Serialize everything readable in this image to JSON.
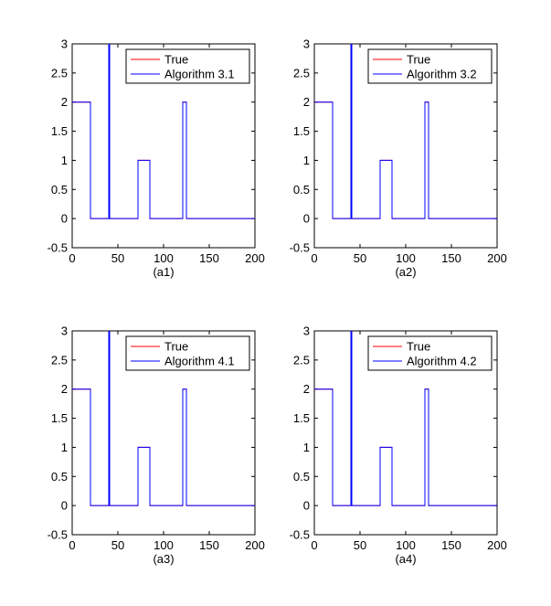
{
  "chart_data": [
    {
      "type": "line",
      "xlabel": "(a1)",
      "xlim": [
        0,
        200
      ],
      "ylim": [
        -0.5,
        3
      ],
      "xticks": [
        "0",
        "50",
        "100",
        "150",
        "200"
      ],
      "yticks": [
        "-0.5",
        "0",
        "0.5",
        "1",
        "1.5",
        "2",
        "2.5",
        "3"
      ],
      "legend_position": "top-right",
      "series": [
        {
          "name": "True",
          "color": "#ff0000",
          "x": [
            0,
            20,
            20,
            40,
            40,
            41,
            41,
            72,
            72,
            85,
            85,
            121,
            121,
            125,
            125,
            200
          ],
          "y": [
            2,
            2,
            0,
            0,
            3,
            3,
            0,
            0,
            1,
            1,
            0,
            0,
            2,
            2,
            0,
            0
          ]
        },
        {
          "name": "Algorithm 3.1",
          "color": "#0000ff",
          "x": [
            0,
            20,
            20,
            40,
            40,
            41,
            41,
            72,
            72,
            85,
            85,
            121,
            121,
            125,
            125,
            200
          ],
          "y": [
            2,
            2,
            0,
            0,
            3,
            3,
            0,
            0,
            1,
            1,
            0,
            0,
            2,
            2,
            0,
            0
          ]
        }
      ]
    },
    {
      "type": "line",
      "xlabel": "(a2)",
      "xlim": [
        0,
        200
      ],
      "ylim": [
        -0.5,
        3
      ],
      "xticks": [
        "0",
        "50",
        "100",
        "150",
        "200"
      ],
      "yticks": [
        "-0.5",
        "0",
        "0.5",
        "1",
        "1.5",
        "2",
        "2.5",
        "3"
      ],
      "legend_position": "top-right",
      "series": [
        {
          "name": "True",
          "color": "#ff0000",
          "x": [
            0,
            20,
            20,
            40,
            40,
            41,
            41,
            72,
            72,
            85,
            85,
            121,
            121,
            125,
            125,
            200
          ],
          "y": [
            2,
            2,
            0,
            0,
            3,
            3,
            0,
            0,
            1,
            1,
            0,
            0,
            2,
            2,
            0,
            0
          ]
        },
        {
          "name": "Algorithm 3.2",
          "color": "#0000ff",
          "x": [
            0,
            20,
            20,
            40,
            40,
            41,
            41,
            72,
            72,
            85,
            85,
            121,
            121,
            125,
            125,
            200
          ],
          "y": [
            2,
            2,
            0,
            0,
            3,
            3,
            0,
            0,
            1,
            1,
            0,
            0,
            2,
            2,
            0,
            0
          ]
        }
      ]
    },
    {
      "type": "line",
      "xlabel": "(a3)",
      "xlim": [
        0,
        200
      ],
      "ylim": [
        -0.5,
        3
      ],
      "xticks": [
        "0",
        "50",
        "100",
        "150",
        "200"
      ],
      "yticks": [
        "-0.5",
        "0",
        "0.5",
        "1",
        "1.5",
        "2",
        "2.5",
        "3"
      ],
      "legend_position": "top-right",
      "series": [
        {
          "name": "True",
          "color": "#ff0000",
          "x": [
            0,
            20,
            20,
            40,
            40,
            41,
            41,
            72,
            72,
            85,
            85,
            121,
            121,
            125,
            125,
            200
          ],
          "y": [
            2,
            2,
            0,
            0,
            3,
            3,
            0,
            0,
            1,
            1,
            0,
            0,
            2,
            2,
            0,
            0
          ]
        },
        {
          "name": "Algorithm 4.1",
          "color": "#0000ff",
          "x": [
            0,
            20,
            20,
            40,
            40,
            41,
            41,
            72,
            72,
            85,
            85,
            121,
            121,
            125,
            125,
            200
          ],
          "y": [
            2,
            2,
            0,
            0,
            3,
            3,
            0,
            0,
            1,
            1,
            0,
            0,
            2,
            2,
            0,
            0
          ]
        }
      ]
    },
    {
      "type": "line",
      "xlabel": "(a4)",
      "xlim": [
        0,
        200
      ],
      "ylim": [
        -0.5,
        3
      ],
      "xticks": [
        "0",
        "50",
        "100",
        "150",
        "200"
      ],
      "yticks": [
        "-0.5",
        "0",
        "0.5",
        "1",
        "1.5",
        "2",
        "2.5",
        "3"
      ],
      "legend_position": "top-right",
      "series": [
        {
          "name": "True",
          "color": "#ff0000",
          "x": [
            0,
            20,
            20,
            40,
            40,
            41,
            41,
            72,
            72,
            85,
            85,
            121,
            121,
            125,
            125,
            200
          ],
          "y": [
            2,
            2,
            0,
            0,
            3,
            3,
            0,
            0,
            1,
            1,
            0,
            0,
            2,
            2,
            0,
            0
          ]
        },
        {
          "name": "Algorithm 4.2",
          "color": "#0000ff",
          "x": [
            0,
            20,
            20,
            40,
            40,
            41,
            41,
            72,
            72,
            85,
            85,
            121,
            121,
            125,
            125,
            200
          ],
          "y": [
            2,
            2,
            0,
            0,
            3,
            3,
            0,
            0,
            1,
            1,
            0,
            0,
            2,
            2,
            0,
            0
          ]
        }
      ]
    }
  ]
}
